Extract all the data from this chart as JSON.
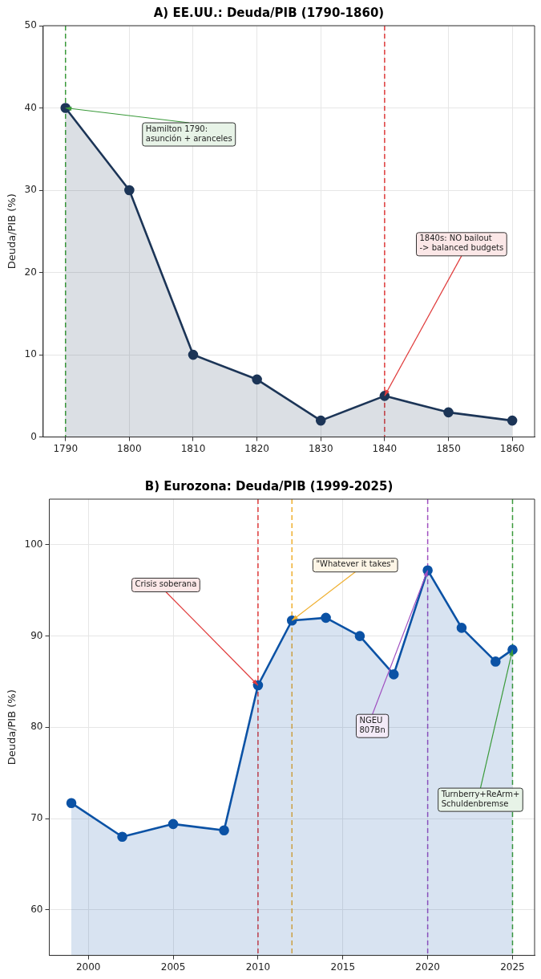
{
  "chart_data": [
    {
      "type": "area",
      "title": "A) EE.UU.: Deuda/PIB (1790-1860)",
      "ylabel": "Deuda/PIB (%)",
      "x": [
        1790,
        1800,
        1810,
        1820,
        1830,
        1840,
        1850,
        1860
      ],
      "series": [
        {
          "color": "#1c3557",
          "values": [
            40,
            30,
            10,
            7,
            2,
            5,
            3,
            2
          ]
        }
      ],
      "xlim": [
        1786.5,
        1863.5
      ],
      "ylim": [
        0,
        50
      ],
      "xticks": [
        1790,
        1800,
        1810,
        1820,
        1830,
        1840,
        1850,
        1860
      ],
      "yticks": [
        0,
        10,
        20,
        30,
        40,
        50
      ],
      "grid": true,
      "marker": "circle",
      "ref_lines": [
        {
          "axis": "x",
          "value": 1790,
          "color": "#3a9a3a",
          "line_style": "dashed"
        },
        {
          "axis": "x",
          "value": 1840,
          "color": "#e03c3c",
          "line_style": "dashed"
        }
      ],
      "annotations": [
        {
          "text": "Hamilton 1790:\nasunción + aranceles",
          "x": 1790,
          "y": 40
        },
        {
          "text": "1840s: NO bailout\n-> balanced budgets",
          "x": 1840,
          "y": 5
        }
      ]
    },
    {
      "type": "area",
      "title": "B) Eurozona: Deuda/PIB (1999-2025)",
      "ylabel": "Deuda/PIB (%)",
      "x": [
        1999,
        2002,
        2005,
        2008,
        2010,
        2012,
        2014,
        2016,
        2018,
        2020,
        2022,
        2024,
        2025
      ],
      "series": [
        {
          "color": "#0b52a5",
          "values": [
            71.7,
            68.0,
            69.4,
            68.7,
            84.6,
            91.7,
            92.0,
            90.0,
            85.8,
            97.2,
            90.9,
            87.2,
            88.5
          ]
        }
      ],
      "xlim": [
        1997.7,
        2026.3
      ],
      "ylim": [
        55,
        105
      ],
      "xticks": [
        2000,
        2005,
        2010,
        2015,
        2020,
        2025
      ],
      "yticks": [
        60,
        70,
        80,
        90,
        100
      ],
      "grid": true,
      "marker": "circle",
      "ref_lines": [
        {
          "axis": "x",
          "value": 2010,
          "color": "#e03c3c",
          "line_style": "dashed"
        },
        {
          "axis": "x",
          "value": 2012,
          "color": "#f0b030",
          "line_style": "dashed"
        },
        {
          "axis": "x",
          "value": 2020,
          "color": "#a050c0",
          "line_style": "dashed"
        },
        {
          "axis": "x",
          "value": 2025,
          "color": "#3a9a3a",
          "line_style": "dashed"
        }
      ],
      "annotations": [
        {
          "text": "Crisis soberana",
          "x": 2010,
          "y": 84.6
        },
        {
          "text": "\"Whatever it takes\"",
          "x": 2012,
          "y": 91.7
        },
        {
          "text": "NGEU\n807Bn",
          "x": 2020,
          "y": 97.2
        },
        {
          "text": "Turnberry+ReArm+\nSchuldenbremse",
          "x": 2025,
          "y": 88.5
        }
      ]
    }
  ]
}
